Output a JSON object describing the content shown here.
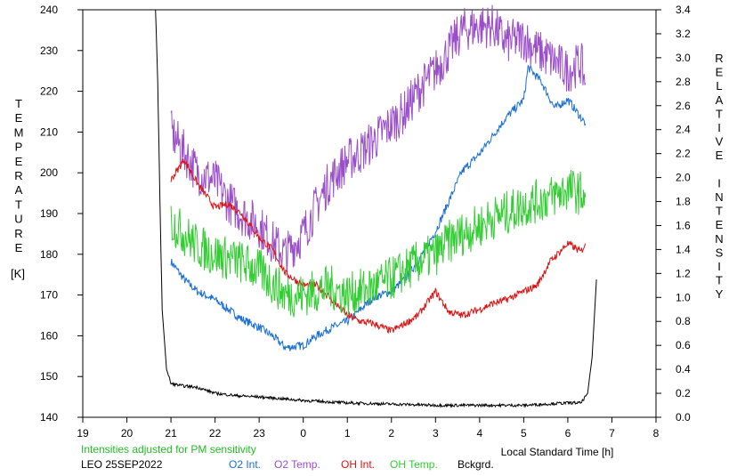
{
  "chart_data": {
    "type": "line",
    "ylabel_left": "TEMPERATURE",
    "ylabel_left_unit": "[K]",
    "ylabel_right": "RELATIVE INTENSITY",
    "xlabel": "Local Standard Time [h]",
    "note": "Intensities adjusted for PM sensitivity",
    "station": "LEO 25SEP2022",
    "x_ticks": [
      "19",
      "20",
      "21",
      "22",
      "23",
      "0",
      "1",
      "2",
      "3",
      "4",
      "5",
      "6",
      "7",
      "8"
    ],
    "y_left_ticks": [
      "140",
      "150",
      "160",
      "170",
      "180",
      "190",
      "200",
      "210",
      "220",
      "230",
      "240"
    ],
    "y_right_ticks": [
      "0.0",
      "0.2",
      "0.4",
      "0.6",
      "0.8",
      "1.0",
      "1.2",
      "1.4",
      "1.6",
      "1.8",
      "2.0",
      "2.2",
      "2.4",
      "2.6",
      "2.8",
      "3.0",
      "3.2",
      "3.4"
    ],
    "xlim": [
      19,
      32
    ],
    "ylim_left": [
      140,
      240
    ],
    "ylim_right": [
      0.0,
      3.4
    ],
    "series": [
      {
        "name": "O2 Int.",
        "axis": "right",
        "color": "#1a6fd0",
        "x": [
          21.0,
          21.3,
          21.6,
          22.0,
          22.3,
          22.6,
          23.0,
          23.3,
          23.6,
          24.0,
          24.3,
          24.6,
          25.0,
          25.3,
          25.6,
          26.0,
          26.3,
          26.6,
          27.0,
          27.3,
          27.6,
          28.0,
          28.3,
          28.6,
          29.0,
          29.1,
          29.4,
          29.7,
          30.0,
          30.3,
          30.4
        ],
        "y": [
          1.3,
          1.15,
          1.05,
          0.98,
          0.9,
          0.82,
          0.75,
          0.68,
          0.58,
          0.6,
          0.68,
          0.74,
          0.8,
          0.9,
          1.0,
          1.05,
          1.15,
          1.3,
          1.55,
          1.8,
          2.05,
          2.2,
          2.35,
          2.5,
          2.65,
          2.92,
          2.8,
          2.58,
          2.65,
          2.5,
          2.45
        ]
      },
      {
        "name": "O2 Temp.",
        "axis": "left",
        "color": "#9a4fc8",
        "x": [
          21.0,
          21.3,
          21.6,
          22.0,
          22.3,
          22.6,
          23.0,
          23.3,
          23.6,
          24.0,
          24.3,
          24.6,
          25.0,
          25.3,
          25.6,
          26.0,
          26.3,
          26.6,
          27.0,
          27.3,
          27.6,
          28.0,
          28.3,
          28.6,
          29.0,
          29.3,
          29.6,
          30.0,
          30.3,
          30.4
        ],
        "y": [
          210,
          205,
          200,
          198,
          193,
          190,
          187,
          183,
          180,
          185,
          192,
          198,
          203,
          205,
          208,
          212,
          215,
          220,
          225,
          230,
          235,
          236,
          236,
          232,
          233,
          230,
          228,
          225,
          227,
          222
        ]
      },
      {
        "name": "OH Int.",
        "axis": "right",
        "color": "#dd1111",
        "x": [
          21.0,
          21.3,
          21.6,
          22.0,
          22.3,
          22.6,
          23.0,
          23.3,
          23.6,
          24.0,
          24.3,
          24.6,
          25.0,
          25.3,
          25.6,
          26.0,
          26.3,
          26.6,
          27.0,
          27.3,
          27.6,
          28.0,
          28.3,
          28.6,
          29.0,
          29.3,
          29.6,
          30.0,
          30.3,
          30.4
        ],
        "y": [
          1.98,
          2.15,
          1.95,
          1.75,
          1.78,
          1.7,
          1.5,
          1.4,
          1.2,
          1.1,
          1.1,
          1.0,
          0.85,
          0.8,
          0.78,
          0.72,
          0.78,
          0.85,
          1.05,
          0.88,
          0.85,
          0.9,
          0.95,
          0.98,
          1.05,
          1.1,
          1.3,
          1.45,
          1.38,
          1.45
        ]
      },
      {
        "name": "OH Temp.",
        "axis": "left",
        "color": "#33cc33",
        "x": [
          21.0,
          21.3,
          21.6,
          22.0,
          22.3,
          22.6,
          23.0,
          23.3,
          23.6,
          24.0,
          24.3,
          24.6,
          25.0,
          25.3,
          25.6,
          26.0,
          26.3,
          26.6,
          27.0,
          27.3,
          27.6,
          28.0,
          28.3,
          28.6,
          29.0,
          29.3,
          29.6,
          30.0,
          30.3,
          30.4
        ],
        "y": [
          188,
          185,
          182,
          180,
          179,
          178,
          176,
          173,
          170,
          170,
          171,
          172,
          170,
          171,
          172,
          174,
          176,
          178,
          180,
          183,
          185,
          187,
          189,
          190,
          192,
          193,
          194,
          196,
          195,
          194
        ]
      },
      {
        "name": "Bckgrd.",
        "axis": "right",
        "color": "#000000",
        "x": [
          20.65,
          20.7,
          20.75,
          20.8,
          20.9,
          21.0,
          21.3,
          21.6,
          22.0,
          22.5,
          23.0,
          24.0,
          25.0,
          26.0,
          27.0,
          28.0,
          29.0,
          29.5,
          30.0,
          30.3,
          30.45,
          30.55,
          30.65
        ],
        "y": [
          3.4,
          2.8,
          1.8,
          0.9,
          0.4,
          0.28,
          0.26,
          0.25,
          0.2,
          0.18,
          0.17,
          0.14,
          0.12,
          0.11,
          0.1,
          0.1,
          0.1,
          0.11,
          0.12,
          0.12,
          0.2,
          0.5,
          1.15
        ]
      }
    ]
  }
}
